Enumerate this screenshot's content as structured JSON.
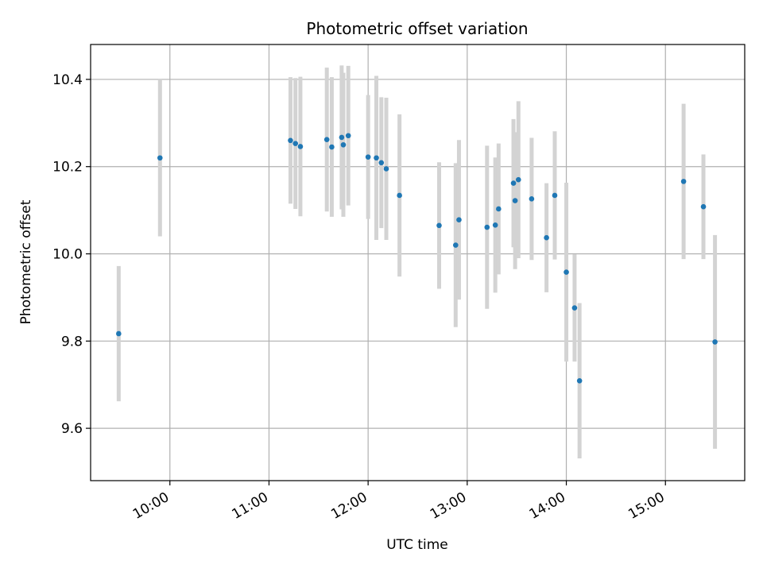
{
  "chart_data": {
    "type": "scatter",
    "title": "Photometric offset variation",
    "xlabel": "UTC time",
    "ylabel": "Photometric offset",
    "x_ticks": [
      "10:00",
      "11:00",
      "12:00",
      "13:00",
      "14:00",
      "15:00"
    ],
    "y_ticks": [
      "9.6",
      "9.8",
      "10.0",
      "10.2",
      "10.4"
    ],
    "xlim": [
      "09:12",
      "15:48"
    ],
    "ylim": [
      9.48,
      10.48
    ],
    "grid": true,
    "point_color": "#1f77b4",
    "errorbar_color": "#d3d3d3",
    "series": [
      {
        "points": [
          {
            "t": "09:29",
            "y": 9.817,
            "err": 0.155
          },
          {
            "t": "09:54",
            "y": 10.22,
            "err": 0.18
          },
          {
            "t": "11:13",
            "y": 10.26,
            "err": 0.145
          },
          {
            "t": "11:16",
            "y": 10.253,
            "err": 0.15
          },
          {
            "t": "11:19",
            "y": 10.246,
            "err": 0.16
          },
          {
            "t": "11:35",
            "y": 10.262,
            "err": 0.165
          },
          {
            "t": "11:38",
            "y": 10.245,
            "err": 0.16
          },
          {
            "t": "11:44",
            "y": 10.267,
            "err": 0.165
          },
          {
            "t": "11:45",
            "y": 10.25,
            "err": 0.165
          },
          {
            "t": "11:48",
            "y": 10.271,
            "err": 0.16
          },
          {
            "t": "12:00",
            "y": 10.222,
            "err": 0.142
          },
          {
            "t": "12:05",
            "y": 10.22,
            "err": 0.188
          },
          {
            "t": "12:08",
            "y": 10.209,
            "err": 0.15
          },
          {
            "t": "12:11",
            "y": 10.195,
            "err": 0.163
          },
          {
            "t": "12:19",
            "y": 10.134,
            "err": 0.186
          },
          {
            "t": "12:43",
            "y": 10.065,
            "err": 0.145
          },
          {
            "t": "12:53",
            "y": 10.02,
            "err": 0.188
          },
          {
            "t": "12:55",
            "y": 10.078,
            "err": 0.183
          },
          {
            "t": "13:12",
            "y": 10.061,
            "err": 0.187
          },
          {
            "t": "13:17",
            "y": 10.066,
            "err": 0.155
          },
          {
            "t": "13:19",
            "y": 10.103,
            "err": 0.15
          },
          {
            "t": "13:28",
            "y": 10.162,
            "err": 0.147
          },
          {
            "t": "13:29",
            "y": 10.122,
            "err": 0.157
          },
          {
            "t": "13:31",
            "y": 10.17,
            "err": 0.18
          },
          {
            "t": "13:39",
            "y": 10.126,
            "err": 0.14
          },
          {
            "t": "13:48",
            "y": 10.037,
            "err": 0.125
          },
          {
            "t": "13:53",
            "y": 10.134,
            "err": 0.147
          },
          {
            "t": "14:00",
            "y": 9.958,
            "err": 0.205
          },
          {
            "t": "14:05",
            "y": 9.876,
            "err": 0.123
          },
          {
            "t": "14:08",
            "y": 9.709,
            "err": 0.178
          },
          {
            "t": "15:11",
            "y": 10.166,
            "err": 0.178
          },
          {
            "t": "15:23",
            "y": 10.108,
            "err": 0.12
          },
          {
            "t": "15:30",
            "y": 9.798,
            "err": 0.245
          }
        ]
      }
    ]
  }
}
